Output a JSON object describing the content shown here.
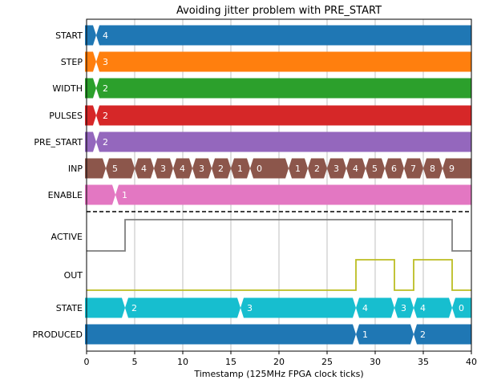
{
  "chart_data": {
    "type": "timing-diagram",
    "title": "Avoiding jitter problem with PRE_START",
    "xlabel": "Timestamp (125MHz FPGA clock ticks)",
    "xlim": [
      0,
      40
    ],
    "xticks": [
      0,
      5,
      10,
      15,
      20,
      25,
      30,
      35,
      40
    ],
    "grid": "vertical",
    "signals": [
      {
        "name": "START",
        "kind": "bus",
        "color": "#1f77b4",
        "segments": [
          {
            "t": 0,
            "value": ""
          },
          {
            "t": 1,
            "value": "4"
          }
        ]
      },
      {
        "name": "STEP",
        "kind": "bus",
        "color": "#ff7f0e",
        "segments": [
          {
            "t": 0,
            "value": ""
          },
          {
            "t": 1,
            "value": "3"
          }
        ]
      },
      {
        "name": "WIDTH",
        "kind": "bus",
        "color": "#2ca02c",
        "segments": [
          {
            "t": 0,
            "value": ""
          },
          {
            "t": 1,
            "value": "2"
          }
        ]
      },
      {
        "name": "PULSES",
        "kind": "bus",
        "color": "#d62728",
        "segments": [
          {
            "t": 0,
            "value": ""
          },
          {
            "t": 1,
            "value": "2"
          }
        ]
      },
      {
        "name": "PRE_START",
        "kind": "bus",
        "color": "#9467bd",
        "segments": [
          {
            "t": 0,
            "value": ""
          },
          {
            "t": 1,
            "value": "2"
          }
        ]
      },
      {
        "name": "INP",
        "kind": "bus",
        "color": "#8c564b",
        "segments": [
          {
            "t": 0,
            "value": ""
          },
          {
            "t": 2,
            "value": "5"
          },
          {
            "t": 5,
            "value": "4"
          },
          {
            "t": 7,
            "value": "3"
          },
          {
            "t": 9,
            "value": "4"
          },
          {
            "t": 11,
            "value": "3"
          },
          {
            "t": 13,
            "value": "2"
          },
          {
            "t": 15,
            "value": "1"
          },
          {
            "t": 17,
            "value": "0"
          },
          {
            "t": 21,
            "value": "1"
          },
          {
            "t": 23,
            "value": "2"
          },
          {
            "t": 25,
            "value": "3"
          },
          {
            "t": 27,
            "value": "4"
          },
          {
            "t": 29,
            "value": "5"
          },
          {
            "t": 31,
            "value": "6"
          },
          {
            "t": 33,
            "value": "7"
          },
          {
            "t": 35,
            "value": "8"
          },
          {
            "t": 37,
            "value": "9"
          }
        ]
      },
      {
        "name": "ENABLE",
        "kind": "bus",
        "color": "#e377c2",
        "segments": [
          {
            "t": 0,
            "value": ""
          },
          {
            "t": 3,
            "value": "1"
          }
        ]
      },
      {
        "name": "ACTIVE",
        "kind": "bit",
        "color": "#7f7f7f",
        "points": [
          [
            0,
            0
          ],
          [
            4,
            0
          ],
          [
            4,
            1
          ],
          [
            38,
            1
          ],
          [
            38,
            0
          ],
          [
            40,
            0
          ]
        ]
      },
      {
        "name": "OUT",
        "kind": "bit",
        "color": "#bcbd22",
        "points": [
          [
            0,
            0
          ],
          [
            28,
            0
          ],
          [
            28,
            1
          ],
          [
            32,
            1
          ],
          [
            32,
            0
          ],
          [
            34,
            0
          ],
          [
            34,
            1
          ],
          [
            38,
            1
          ],
          [
            38,
            0
          ],
          [
            40,
            0
          ]
        ]
      },
      {
        "name": "STATE",
        "kind": "bus",
        "color": "#17becf",
        "segments": [
          {
            "t": 0,
            "value": ""
          },
          {
            "t": 4,
            "value": "2"
          },
          {
            "t": 16,
            "value": "3"
          },
          {
            "t": 28,
            "value": "4"
          },
          {
            "t": 32,
            "value": "3"
          },
          {
            "t": 34,
            "value": "4"
          },
          {
            "t": 38,
            "value": "0"
          }
        ]
      },
      {
        "name": "PRODUCED",
        "kind": "bus",
        "color": "#1f77b4",
        "segments": [
          {
            "t": 0,
            "value": ""
          },
          {
            "t": 28,
            "value": "1"
          },
          {
            "t": 34,
            "value": "2"
          }
        ]
      }
    ],
    "separator": {
      "after_signal": "ENABLE",
      "style": "dashed"
    }
  }
}
